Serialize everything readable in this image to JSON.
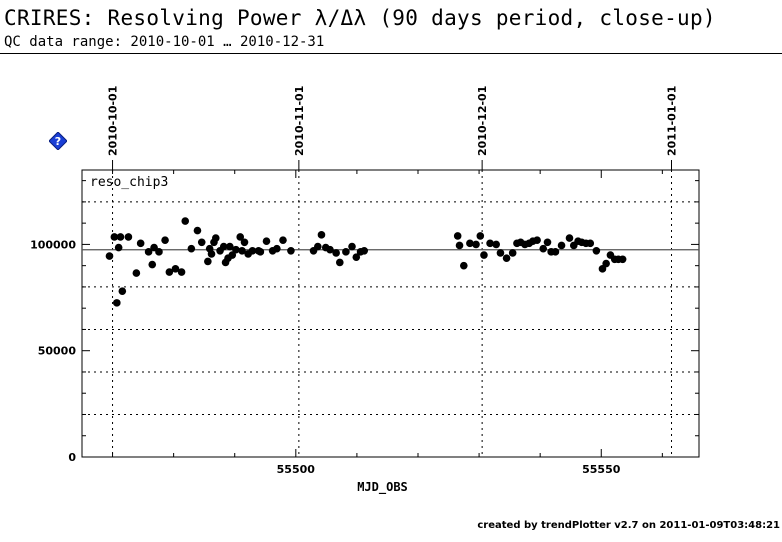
{
  "header": {
    "title": "CRIRES: Resolving Power λ/Δλ (90 days period, close-up)",
    "subtitle": "QC data range: 2010-10-01 … 2010-12-31"
  },
  "footer": {
    "text": "created by trendPlotter v2.7 on 2011-01-09T03:48:21"
  },
  "icons": {
    "help": "help-diamond-icon"
  },
  "colors": {
    "points": "#000000",
    "help_icon": "#1a3fd6"
  },
  "chart_data": {
    "type": "scatter",
    "panel_label": "reso_chip3",
    "xlabel": "MJD_OBS",
    "xlim": [
      55465,
      55566
    ],
    "ylim": [
      0,
      135000
    ],
    "x_ticks": [
      55500,
      55550
    ],
    "y_ticks": [
      0,
      50000,
      100000
    ],
    "grid_y": [
      20000,
      40000,
      60000,
      80000,
      120000
    ],
    "reference_line": 97500,
    "date_markers": [
      {
        "x": 55470,
        "label": "2010-10-01"
      },
      {
        "x": 55500.5,
        "label": "2010-11-01"
      },
      {
        "x": 55530.5,
        "label": "2010-12-01"
      },
      {
        "x": 55561.5,
        "label": "2011-01-01"
      }
    ],
    "series": [
      {
        "points": [
          [
            55469.5,
            94500
          ],
          [
            55470.3,
            103500
          ],
          [
            55470.7,
            72500
          ],
          [
            55471.0,
            98500
          ],
          [
            55471.3,
            103500
          ],
          [
            55471.6,
            78000
          ],
          [
            55472.6,
            103500
          ],
          [
            55473.9,
            86500
          ],
          [
            55474.6,
            100500
          ],
          [
            55475.9,
            96500
          ],
          [
            55476.5,
            90500
          ],
          [
            55476.8,
            98500
          ],
          [
            55477.6,
            96500
          ],
          [
            55478.6,
            102000
          ],
          [
            55479.3,
            87000
          ],
          [
            55480.3,
            88500
          ],
          [
            55481.3,
            87000
          ],
          [
            55481.9,
            111000
          ],
          [
            55482.9,
            98000
          ],
          [
            55483.9,
            106500
          ],
          [
            55484.6,
            101000
          ],
          [
            55485.6,
            92000
          ],
          [
            55485.9,
            98000
          ],
          [
            55486.2,
            95500
          ],
          [
            55486.6,
            101000
          ],
          [
            55486.9,
            103000
          ],
          [
            55487.6,
            97000
          ],
          [
            55488.2,
            99000
          ],
          [
            55488.5,
            91500
          ],
          [
            55488.9,
            93500
          ],
          [
            55489.2,
            99000
          ],
          [
            55489.6,
            95000
          ],
          [
            55490.2,
            97500
          ],
          [
            55490.9,
            103500
          ],
          [
            55491.2,
            97000
          ],
          [
            55491.6,
            101000
          ],
          [
            55492.2,
            95500
          ],
          [
            55492.9,
            97000
          ],
          [
            55493.9,
            97000
          ],
          [
            55494.2,
            96500
          ],
          [
            55495.2,
            101500
          ],
          [
            55496.2,
            97000
          ],
          [
            55496.9,
            98000
          ],
          [
            55497.9,
            102000
          ],
          [
            55499.2,
            97000
          ],
          [
            55502.9,
            97000
          ],
          [
            55503.6,
            99000
          ],
          [
            55504.2,
            104500
          ],
          [
            55504.9,
            98500
          ],
          [
            55505.6,
            97500
          ],
          [
            55506.6,
            96000
          ],
          [
            55507.2,
            91500
          ],
          [
            55508.2,
            96500
          ],
          [
            55509.2,
            99000
          ],
          [
            55509.9,
            94000
          ],
          [
            55510.6,
            96500
          ],
          [
            55511.2,
            97000
          ],
          [
            55526.5,
            104000
          ],
          [
            55526.8,
            99500
          ],
          [
            55527.5,
            90000
          ],
          [
            55528.5,
            100500
          ],
          [
            55529.5,
            100000
          ],
          [
            55530.2,
            104000
          ],
          [
            55530.8,
            95000
          ],
          [
            55531.8,
            100500
          ],
          [
            55532.8,
            100000
          ],
          [
            55533.5,
            96000
          ],
          [
            55534.5,
            93500
          ],
          [
            55535.5,
            96000
          ],
          [
            55536.2,
            100500
          ],
          [
            55536.8,
            101000
          ],
          [
            55537.5,
            100000
          ],
          [
            55538.2,
            100500
          ],
          [
            55538.8,
            101500
          ],
          [
            55539.5,
            102000
          ],
          [
            55540.5,
            98000
          ],
          [
            55541.2,
            101000
          ],
          [
            55541.8,
            96500
          ],
          [
            55542.5,
            96500
          ],
          [
            55543.5,
            99500
          ],
          [
            55544.8,
            103000
          ],
          [
            55545.5,
            99500
          ],
          [
            55546.2,
            101500
          ],
          [
            55546.8,
            101000
          ],
          [
            55547.5,
            100500
          ],
          [
            55548.2,
            100500
          ],
          [
            55549.2,
            97000
          ],
          [
            55550.2,
            88500
          ],
          [
            55550.8,
            91000
          ],
          [
            55551.5,
            95000
          ],
          [
            55552.2,
            93000
          ],
          [
            55552.8,
            93000
          ],
          [
            55553.5,
            93000
          ]
        ]
      }
    ]
  }
}
